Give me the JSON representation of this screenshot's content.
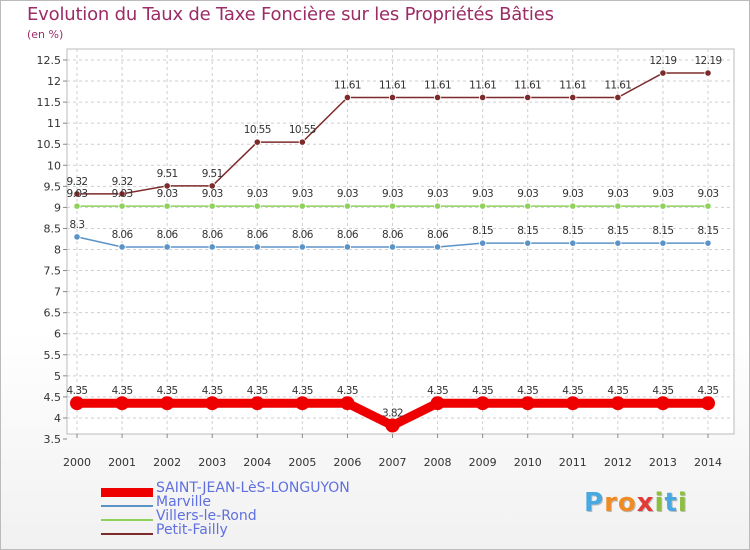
{
  "title": "Evolution du Taux de Taxe Foncière sur les Propriétés Bâties",
  "unit": "(en %)",
  "logo": {
    "text": "Proxiti",
    "letter_colors": [
      "#4aa8e0",
      "#f08a24",
      "#f08a24",
      "#e23a36",
      "#8bbf3c",
      "#4aa8e0",
      "#8bbf3c"
    ]
  },
  "chart_data": {
    "type": "line",
    "x": [
      "2000",
      "2001",
      "2002",
      "2003",
      "2004",
      "2005",
      "2006",
      "2007",
      "2008",
      "2009",
      "2010",
      "2011",
      "2012",
      "2013",
      "2014"
    ],
    "ylim": [
      3.5,
      12.5
    ],
    "yticks": [
      "3.5",
      "4",
      "4.5",
      "5",
      "5.5",
      "6",
      "6.5",
      "7",
      "7.5",
      "8",
      "8.5",
      "9",
      "9.5",
      "10",
      "10.5",
      "11",
      "11.5",
      "12",
      "12.5"
    ],
    "series": [
      {
        "name": "SAINT-JEAN-LèS-LONGUYON",
        "color": "#ee0000",
        "values": [
          4.35,
          4.35,
          4.35,
          4.35,
          4.35,
          4.35,
          4.35,
          3.82,
          4.35,
          4.35,
          4.35,
          4.35,
          4.35,
          4.35,
          4.35
        ],
        "labels": [
          "4.35",
          "4.35",
          "4.35",
          "4.35",
          "4.35",
          "4.35",
          "4.35",
          "3.82",
          "4.35",
          "4.35",
          "4.35",
          "4.35",
          "4.35",
          "4.35",
          "4.35"
        ]
      },
      {
        "name": "Marville",
        "color": "#5b93c7",
        "values": [
          8.3,
          8.06,
          8.06,
          8.06,
          8.06,
          8.06,
          8.06,
          8.06,
          8.06,
          8.15,
          8.15,
          8.15,
          8.15,
          8.15,
          8.15
        ],
        "labels": [
          "8.3",
          "8.06",
          "8.06",
          "8.06",
          "8.06",
          "8.06",
          "8.06",
          "8.06",
          "8.06",
          "8.15",
          "8.15",
          "8.15",
          "8.15",
          "8.15",
          "8.15"
        ]
      },
      {
        "name": "Villers-le-Rond",
        "color": "#8fd15a",
        "values": [
          9.03,
          9.03,
          9.03,
          9.03,
          9.03,
          9.03,
          9.03,
          9.03,
          9.03,
          9.03,
          9.03,
          9.03,
          9.03,
          9.03,
          9.03
        ],
        "labels": [
          "9.03",
          "9.03",
          "9.03",
          "9.03",
          "9.03",
          "9.03",
          "9.03",
          "9.03",
          "9.03",
          "9.03",
          "9.03",
          "9.03",
          "9.03",
          "9.03",
          "9.03"
        ]
      },
      {
        "name": "Petit-Failly",
        "color": "#7d2a2a",
        "values": [
          9.32,
          9.32,
          9.51,
          9.51,
          10.55,
          10.55,
          11.61,
          11.61,
          11.61,
          11.61,
          11.61,
          11.61,
          11.61,
          12.19,
          12.19
        ],
        "labels": [
          "9.32",
          "9.32",
          "9.51",
          "9.51",
          "10.55",
          "10.55",
          "11.61",
          "11.61",
          "11.61",
          "11.61",
          "11.61",
          "11.61",
          "11.61",
          "12.19",
          "12.19"
        ]
      }
    ],
    "grid": true,
    "legend": "bottom-left"
  }
}
